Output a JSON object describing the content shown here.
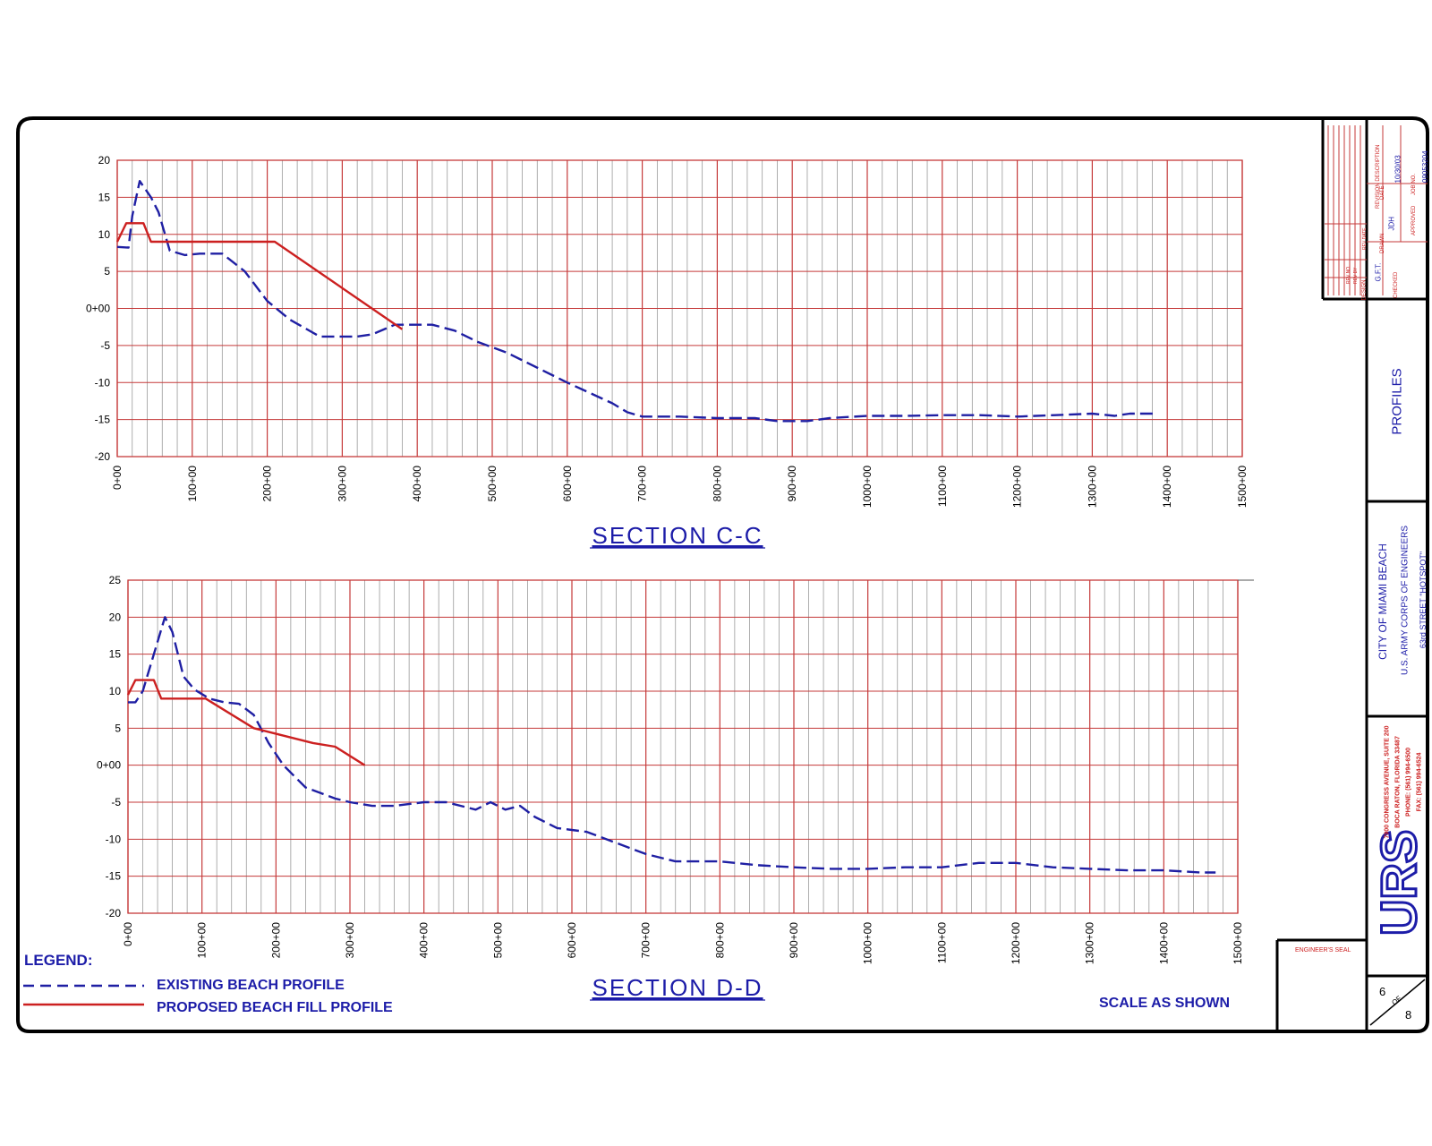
{
  "legend": {
    "title": "LEGEND:",
    "existing_label": "EXISTING BEACH PROFILE",
    "proposed_label": "PROPOSED BEACH FILL PROFILE"
  },
  "scale_note": "SCALE AS SHOWN",
  "title_block": {
    "sheet_title": "PROFILES",
    "project": "CITY OF MIAMI BEACH",
    "agency": "U.S. ARMY CORPS OF ENGINEERS",
    "location": "63rd STREET \"HOTSPOT\"",
    "address_lines": [
      "7900 CONGRESS AVENUE, SUITE 200",
      "BOCA RATON, FLORIDA 33487",
      "PHONE: (561) 994-6500",
      "FAX: (561) 994-6524"
    ],
    "company": "URS",
    "engineers_seal": "ENGINEER'S SEAL",
    "sheet_number": "6",
    "sheet_of": "OF",
    "sheet_total": "8",
    "revision_block": {
      "revision_description": "REVISION DESCRIPTION",
      "date_label": "DATE",
      "date": "10/30/03",
      "job_no_label": "JOB NO.",
      "job_no": "09053204",
      "drawn_label": "DRAWN",
      "drawn": "JDH",
      "design_label": "DESIGN",
      "design": "G.F.T.",
      "checked_label": "CHECKED",
      "approved_label": "APPROVED",
      "rev_no_label": "REV NO.",
      "rev_by_label": "REV BY",
      "rev_date_label": "REV DATE"
    }
  },
  "colors": {
    "grid": "#c53a3a",
    "grid_light": "#9a9a9a",
    "existing": "#1f1fa3",
    "proposed": "#cc2020",
    "title_blue": "#1c1ca8"
  },
  "chart_data": [
    {
      "type": "line",
      "title": "SECTION C-C",
      "x_ticks": [
        "0+00",
        "100+00",
        "200+00",
        "300+00",
        "400+00",
        "500+00",
        "600+00",
        "700+00",
        "800+00",
        "900+00",
        "1000+00",
        "1100+00",
        "1200+00",
        "1300+00",
        "1400+00",
        "1500+00"
      ],
      "y_ticks": [
        "20",
        "15",
        "10",
        "5",
        "0+00",
        "-5",
        "-10",
        "-15",
        "-20"
      ],
      "xlim": [
        0,
        1500
      ],
      "ylim": [
        -20,
        20
      ],
      "series": [
        {
          "name": "EXISTING BEACH PROFILE",
          "style": "dashed",
          "points": [
            [
              0,
              8.3
            ],
            [
              15,
              8.2
            ],
            [
              20,
              12.5
            ],
            [
              30,
              17.2
            ],
            [
              45,
              15
            ],
            [
              55,
              13
            ],
            [
              70,
              7.8
            ],
            [
              90,
              7.2
            ],
            [
              110,
              7.4
            ],
            [
              140,
              7.4
            ],
            [
              170,
              5
            ],
            [
              200,
              1
            ],
            [
              230,
              -1.5
            ],
            [
              270,
              -3.8
            ],
            [
              300,
              -3.8
            ],
            [
              320,
              -3.8
            ],
            [
              340,
              -3.5
            ],
            [
              370,
              -2.2
            ],
            [
              400,
              -2.2
            ],
            [
              420,
              -2.2
            ],
            [
              450,
              -3
            ],
            [
              480,
              -4.5
            ],
            [
              520,
              -6
            ],
            [
              600,
              -10
            ],
            [
              660,
              -12.8
            ],
            [
              680,
              -14
            ],
            [
              700,
              -14.6
            ],
            [
              750,
              -14.6
            ],
            [
              800,
              -14.8
            ],
            [
              850,
              -14.8
            ],
            [
              880,
              -15.2
            ],
            [
              920,
              -15.2
            ],
            [
              950,
              -14.8
            ],
            [
              1000,
              -14.5
            ],
            [
              1050,
              -14.5
            ],
            [
              1100,
              -14.4
            ],
            [
              1150,
              -14.4
            ],
            [
              1200,
              -14.6
            ],
            [
              1250,
              -14.4
            ],
            [
              1300,
              -14.2
            ],
            [
              1330,
              -14.5
            ],
            [
              1350,
              -14.2
            ],
            [
              1385,
              -14.2
            ]
          ]
        },
        {
          "name": "PROPOSED BEACH FILL PROFILE",
          "style": "solid",
          "points": [
            [
              0,
              9
            ],
            [
              12,
              11.5
            ],
            [
              35,
              11.5
            ],
            [
              45,
              9
            ],
            [
              210,
              9
            ],
            [
              380,
              -2.8
            ]
          ]
        }
      ]
    },
    {
      "type": "line",
      "title": "SECTION D-D",
      "x_ticks": [
        "0+00",
        "100+00",
        "200+00",
        "300+00",
        "400+00",
        "500+00",
        "600+00",
        "700+00",
        "800+00",
        "900+00",
        "1000+00",
        "1100+00",
        "1200+00",
        "1300+00",
        "1400+00",
        "1500+00"
      ],
      "y_ticks": [
        "25",
        "20",
        "15",
        "10",
        "5",
        "0+00",
        "-5",
        "-10",
        "-15",
        "-20"
      ],
      "xlim": [
        0,
        1500
      ],
      "ylim": [
        -20,
        25
      ],
      "series": [
        {
          "name": "EXISTING BEACH PROFILE",
          "style": "dashed",
          "points": [
            [
              0,
              8.5
            ],
            [
              10,
              8.5
            ],
            [
              20,
              10
            ],
            [
              35,
              15
            ],
            [
              50,
              20
            ],
            [
              60,
              18
            ],
            [
              75,
              12
            ],
            [
              90,
              10.2
            ],
            [
              110,
              9
            ],
            [
              130,
              8.5
            ],
            [
              150,
              8.3
            ],
            [
              170,
              6.8
            ],
            [
              190,
              3
            ],
            [
              210,
              0
            ],
            [
              240,
              -3
            ],
            [
              280,
              -4.5
            ],
            [
              300,
              -5
            ],
            [
              330,
              -5.5
            ],
            [
              360,
              -5.5
            ],
            [
              400,
              -5
            ],
            [
              430,
              -5
            ],
            [
              470,
              -6
            ],
            [
              490,
              -5
            ],
            [
              510,
              -6
            ],
            [
              530,
              -5.5
            ],
            [
              550,
              -7
            ],
            [
              580,
              -8.5
            ],
            [
              620,
              -9
            ],
            [
              660,
              -10.5
            ],
            [
              700,
              -12
            ],
            [
              740,
              -13
            ],
            [
              800,
              -13
            ],
            [
              850,
              -13.5
            ],
            [
              900,
              -13.8
            ],
            [
              950,
              -14
            ],
            [
              1000,
              -14
            ],
            [
              1050,
              -13.8
            ],
            [
              1100,
              -13.8
            ],
            [
              1150,
              -13.2
            ],
            [
              1200,
              -13.2
            ],
            [
              1250,
              -13.8
            ],
            [
              1300,
              -14
            ],
            [
              1350,
              -14.2
            ],
            [
              1400,
              -14.2
            ],
            [
              1450,
              -14.5
            ],
            [
              1470,
              -14.5
            ]
          ]
        },
        {
          "name": "PROPOSED BEACH FILL PROFILE",
          "style": "solid",
          "points": [
            [
              0,
              9.5
            ],
            [
              10,
              11.5
            ],
            [
              35,
              11.5
            ],
            [
              45,
              9
            ],
            [
              105,
              9
            ],
            [
              170,
              5
            ],
            [
              250,
              3
            ],
            [
              280,
              2.5
            ],
            [
              320,
              0
            ]
          ]
        }
      ]
    }
  ]
}
